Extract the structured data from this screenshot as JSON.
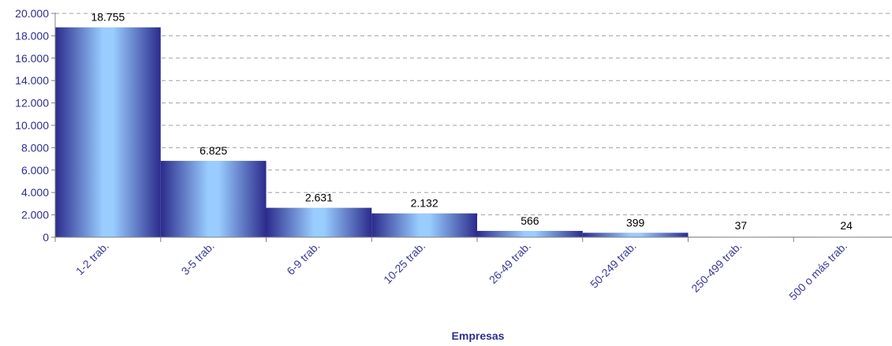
{
  "chart_data": {
    "type": "bar",
    "categories": [
      "1-2 trab.",
      "3-5 trab.",
      "6-9 trab.",
      "10-25 trab.",
      "26-49 trab.",
      "50-249 trab.",
      "250-499 trab.",
      "500 o más trab."
    ],
    "values": [
      18755,
      6825,
      2631,
      2132,
      566,
      399,
      37,
      24
    ],
    "data_labels": [
      "18.755",
      "6.825",
      "2.631",
      "2.132",
      "566",
      "399",
      "37",
      "24"
    ],
    "y_ticks": [
      0,
      2000,
      4000,
      6000,
      8000,
      10000,
      12000,
      14000,
      16000,
      18000,
      20000
    ],
    "y_tick_labels": [
      "0",
      "2.000",
      "4.000",
      "6.000",
      "8.000",
      "10.000",
      "12.000",
      "14.000",
      "16.000",
      "18.000",
      "20.000"
    ],
    "ylim": [
      0,
      20000
    ],
    "xlabel": "Empresas",
    "ylabel": "",
    "title": "",
    "grid": true,
    "legend": "none",
    "colors": {
      "bar_dark": "#2b2b8c",
      "bar_light": "#99ccff",
      "axis_text": "#2e2e8f",
      "grid": "#a0a0a0"
    }
  }
}
